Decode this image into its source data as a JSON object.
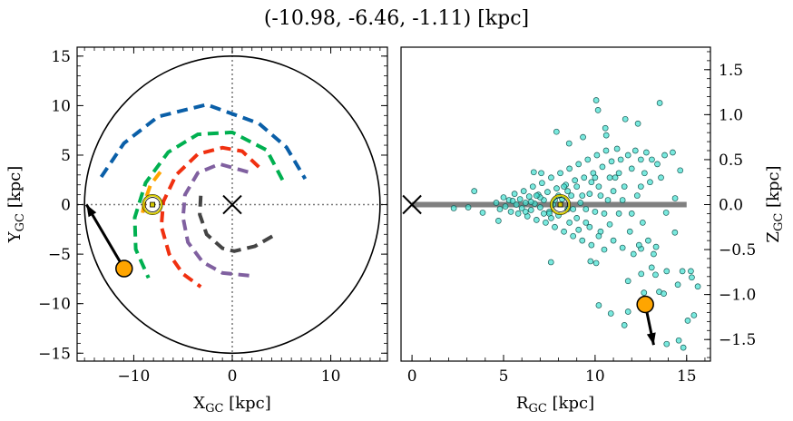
{
  "title": "(-10.98, -6.46, -1.11) [kpc]",
  "chart_data": [
    {
      "type": "line",
      "panel": "left",
      "xlabel": "X",
      "xlabel_sub": "GC",
      "xlabel_unit": " [kpc]",
      "ylabel": "Y",
      "ylabel_sub": "GC",
      "ylabel_unit": " [kpc]",
      "xlim": [
        -15.75,
        15.75
      ],
      "ylim": [
        -15.8,
        15.9
      ],
      "xticks": [
        -10,
        0,
        10
      ],
      "xtick_labels": [
        "−10",
        "0",
        "10"
      ],
      "yticks": [
        -15,
        -10,
        -5,
        0,
        5,
        10,
        15
      ],
      "ytick_labels": [
        "−15",
        "−10",
        "−5",
        "0",
        "5",
        "10",
        "15"
      ],
      "boundary_circle_radius": 15,
      "crosshair": {
        "x": 0,
        "y": 0,
        "style": "dotted",
        "color": "#777777"
      },
      "galactic_center_marker": {
        "x": 0,
        "y": 0,
        "marker": "x"
      },
      "sun": {
        "x": -8.1,
        "y": 0,
        "color": "#d4c800"
      },
      "object": {
        "x": -10.98,
        "y": -6.46,
        "color": "#ffa500"
      },
      "arrow": {
        "from": [
          -10.98,
          -6.46
        ],
        "to": [
          -14.8,
          0
        ]
      },
      "arms": [
        {
          "color": "#0a5fa8",
          "points": [
            [
              -13.3,
              2.8
            ],
            [
              -11,
              6.2
            ],
            [
              -7.5,
              8.9
            ],
            [
              -2.6,
              10.1
            ],
            [
              2.7,
              8.2
            ],
            [
              5.5,
              5.8
            ],
            [
              7.4,
              2.6
            ]
          ]
        },
        {
          "color": "#00b050",
          "points": [
            [
              5.1,
              2.5
            ],
            [
              3.5,
              5.5
            ],
            [
              0,
              7.3
            ],
            [
              -3.5,
              7.1
            ],
            [
              -6.5,
              5.3
            ],
            [
              -8.8,
              2.2
            ],
            [
              -9.9,
              -1.3
            ],
            [
              -9.8,
              -4.5
            ],
            [
              -8.5,
              -7.4
            ]
          ]
        },
        {
          "color": "#f03010",
          "points": [
            [
              2.7,
              3.8
            ],
            [
              1,
              5.4
            ],
            [
              -1,
              5.75
            ],
            [
              -3.5,
              5.1
            ],
            [
              -5.7,
              3
            ],
            [
              -7,
              0.3
            ],
            [
              -7.2,
              -2.2
            ],
            [
              -6.4,
              -5
            ],
            [
              -5,
              -7
            ],
            [
              -3.2,
              -8.3
            ]
          ]
        },
        {
          "color": "#8060a0",
          "points": [
            [
              1.6,
              3.3
            ],
            [
              -1.3,
              4.1
            ],
            [
              -3.5,
              3.2
            ],
            [
              -4.8,
              1
            ],
            [
              -5,
              -1.3
            ],
            [
              -4.5,
              -3.8
            ],
            [
              -3,
              -5.8
            ],
            [
              -1,
              -6.9
            ],
            [
              2.1,
              -7.2
            ]
          ]
        },
        {
          "color": "#444444",
          "points": [
            [
              -3.2,
              0.9
            ],
            [
              -3.3,
              -1
            ],
            [
              -2.6,
              -3
            ],
            [
              -1,
              -4.4
            ],
            [
              0.2,
              -4.7
            ],
            [
              2.3,
              -4.2
            ],
            [
              4.4,
              -3
            ]
          ]
        },
        {
          "color": "#ffa500",
          "points": [
            [
              -7.3,
              3.3
            ],
            [
              -8.3,
              2
            ],
            [
              -8.9,
              0.3
            ],
            [
              -9.15,
              -1.1
            ]
          ]
        }
      ]
    },
    {
      "type": "scatter",
      "panel": "right",
      "xlabel": "R",
      "xlabel_sub": "GC",
      "xlabel_unit": " [kpc]",
      "ylabel": "Z",
      "ylabel_sub": "GC",
      "ylabel_unit": " [kpc]",
      "xlim": [
        -0.6,
        16.3
      ],
      "ylim": [
        -1.74,
        1.75
      ],
      "xticks": [
        0,
        5,
        10,
        15
      ],
      "xtick_labels": [
        "0",
        "5",
        "10",
        "15"
      ],
      "yticks": [
        -1.5,
        -1.0,
        -0.5,
        0.0,
        0.5,
        1.0,
        1.5
      ],
      "ytick_labels": [
        "−1.5",
        "−1.0",
        "−0.5",
        "0.0",
        "0.5",
        "1.0",
        "1.5"
      ],
      "disk_band": {
        "r_range": [
          0,
          15
        ],
        "z": 0,
        "color": "#808080"
      },
      "galactic_center_marker": {
        "r": 0,
        "z": 0,
        "marker": "x"
      },
      "sun": {
        "r": 8.1,
        "z": 0,
        "color": "#d4c800"
      },
      "object": {
        "r": 12.74,
        "z": -1.11,
        "color": "#ffa500"
      },
      "arrow": {
        "from": [
          12.74,
          -1.11
        ],
        "to": [
          13.2,
          -1.56
        ]
      },
      "point_color": "#40e0d0",
      "points": [
        [
          10.06,
          1.16
        ],
        [
          10.16,
          1.05
        ],
        [
          13.53,
          1.13
        ],
        [
          11.65,
          0.95
        ],
        [
          12.34,
          0.9
        ],
        [
          7.89,
          0.81
        ],
        [
          10.56,
          0.85
        ],
        [
          10.61,
          0.77
        ],
        [
          9.34,
          0.75
        ],
        [
          8.58,
          0.68
        ],
        [
          6.65,
          0.36
        ],
        [
          7.06,
          0.35
        ],
        [
          3.4,
          0.15
        ],
        [
          2.28,
          -0.04
        ],
        [
          3.07,
          -0.03
        ],
        [
          3.86,
          -0.09
        ],
        [
          4.72,
          -0.18
        ],
        [
          7.59,
          -0.64
        ],
        [
          9.75,
          -0.63
        ],
        [
          10.06,
          -0.65
        ],
        [
          11.8,
          -0.85
        ],
        [
          12.52,
          -0.77
        ],
        [
          13.09,
          -0.7
        ],
        [
          13.3,
          -0.78
        ],
        [
          13.91,
          -0.74
        ],
        [
          14.77,
          -0.74
        ],
        [
          15.23,
          -0.74
        ],
        [
          15.28,
          -0.81
        ],
        [
          14.52,
          -0.89
        ],
        [
          15.61,
          -0.91
        ],
        [
          13.5,
          -0.97
        ],
        [
          13.75,
          -0.99
        ],
        [
          12.67,
          -0.98
        ],
        [
          10.2,
          -1.12
        ],
        [
          10.86,
          -1.21
        ],
        [
          11.8,
          -1.19
        ],
        [
          11.6,
          -1.34
        ],
        [
          15.06,
          -1.29
        ],
        [
          15.4,
          -1.23
        ],
        [
          13.91,
          -1.55
        ],
        [
          14.57,
          -1.51
        ],
        [
          14.82,
          -1.59
        ],
        [
          14.37,
          0.07
        ],
        [
          14.36,
          -0.31
        ],
        [
          14.65,
          0.38
        ],
        [
          14.24,
          0.58
        ],
        [
          13.88,
          -0.09
        ],
        [
          13.33,
          -0.47
        ],
        [
          12.51,
          -0.49
        ],
        [
          4.6,
          0.02
        ],
        [
          4.8,
          -0.05
        ],
        [
          5.0,
          0.08
        ],
        [
          5.1,
          -0.02
        ],
        [
          5.3,
          0.05
        ],
        [
          5.4,
          -0.08
        ],
        [
          5.6,
          0.12
        ],
        [
          5.7,
          0.0
        ],
        [
          5.8,
          -0.1
        ],
        [
          5.9,
          0.06
        ],
        [
          6.0,
          -0.04
        ],
        [
          6.1,
          0.15
        ],
        [
          6.2,
          0.02
        ],
        [
          6.3,
          -0.13
        ],
        [
          6.4,
          0.09
        ],
        [
          6.5,
          -0.06
        ],
        [
          6.6,
          0.2
        ],
        [
          6.7,
          0.01
        ],
        [
          6.8,
          -0.17
        ],
        [
          6.9,
          0.11
        ],
        [
          7.0,
          -0.03
        ],
        [
          7.1,
          0.24
        ],
        [
          7.2,
          0.05
        ],
        [
          7.3,
          -0.2
        ],
        [
          7.4,
          0.14
        ],
        [
          7.5,
          -0.08
        ],
        [
          7.6,
          0.3
        ],
        [
          7.7,
          0.0
        ],
        [
          7.8,
          -0.25
        ],
        [
          7.9,
          0.18
        ],
        [
          8.0,
          -0.12
        ],
        [
          8.1,
          0.35
        ],
        [
          8.2,
          0.06
        ],
        [
          8.3,
          -0.3
        ],
        [
          8.4,
          0.22
        ],
        [
          8.5,
          -0.05
        ],
        [
          8.6,
          0.4
        ],
        [
          8.7,
          0.1
        ],
        [
          8.8,
          -0.35
        ],
        [
          8.9,
          0.27
        ],
        [
          9.0,
          -0.15
        ],
        [
          9.1,
          0.45
        ],
        [
          9.2,
          0.02
        ],
        [
          9.3,
          -0.4
        ],
        [
          9.4,
          0.3
        ],
        [
          9.5,
          -0.2
        ],
        [
          9.6,
          0.5
        ],
        [
          9.7,
          0.12
        ],
        [
          9.8,
          -0.45
        ],
        [
          9.9,
          0.35
        ],
        [
          10.0,
          -0.08
        ],
        [
          10.1,
          0.55
        ],
        [
          10.2,
          0.2
        ],
        [
          10.3,
          -0.3
        ],
        [
          10.4,
          0.42
        ],
        [
          10.5,
          -0.5
        ],
        [
          10.6,
          0.6
        ],
        [
          10.7,
          0.05
        ],
        [
          10.8,
          -0.22
        ],
        [
          10.9,
          0.48
        ],
        [
          11.0,
          -0.4
        ],
        [
          11.1,
          0.3
        ],
        [
          11.2,
          0.62
        ],
        [
          11.3,
          -0.1
        ],
        [
          11.4,
          0.5
        ],
        [
          11.5,
          -0.48
        ],
        [
          11.6,
          0.2
        ],
        [
          11.8,
          0.55
        ],
        [
          11.9,
          -0.3
        ],
        [
          12.0,
          0.4
        ],
        [
          12.1,
          -0.55
        ],
        [
          12.2,
          0.6
        ],
        [
          12.3,
          0.1
        ],
        [
          12.4,
          -0.45
        ],
        [
          12.5,
          0.5
        ],
        [
          12.6,
          -0.2
        ],
        [
          12.7,
          0.35
        ],
        [
          12.8,
          0.58
        ],
        [
          12.9,
          -0.4
        ],
        [
          13.0,
          0.25
        ],
        [
          13.1,
          0.5
        ],
        [
          13.2,
          -0.55
        ],
        [
          13.4,
          0.45
        ],
        [
          13.6,
          0.3
        ],
        [
          13.8,
          0.55
        ],
        [
          6.5,
          0.03
        ],
        [
          7.0,
          0.08
        ],
        [
          7.5,
          -0.1
        ],
        [
          8.0,
          0.1
        ],
        [
          8.5,
          0.15
        ],
        [
          9.0,
          0.2
        ],
        [
          9.5,
          -0.05
        ],
        [
          10.0,
          0.3
        ],
        [
          7.2,
          -0.1
        ],
        [
          7.8,
          0.05
        ],
        [
          8.8,
          -0.05
        ],
        [
          9.3,
          0.1
        ],
        [
          9.8,
          0.25
        ],
        [
          10.3,
          0.1
        ],
        [
          10.8,
          0.3
        ],
        [
          6.2,
          -0.08
        ],
        [
          5.5,
          0.04
        ],
        [
          8.3,
          0.2
        ],
        [
          9.7,
          -0.25
        ],
        [
          10.5,
          -0.1
        ],
        [
          11.0,
          0.15
        ],
        [
          11.5,
          0.05
        ],
        [
          12.0,
          -0.1
        ],
        [
          12.5,
          0.2
        ],
        [
          11.3,
          0.35
        ],
        [
          10.2,
          -0.35
        ],
        [
          9.1,
          -0.28
        ],
        [
          8.6,
          -0.2
        ],
        [
          7.6,
          -0.15
        ],
        [
          6.8,
          0.1
        ]
      ]
    }
  ]
}
